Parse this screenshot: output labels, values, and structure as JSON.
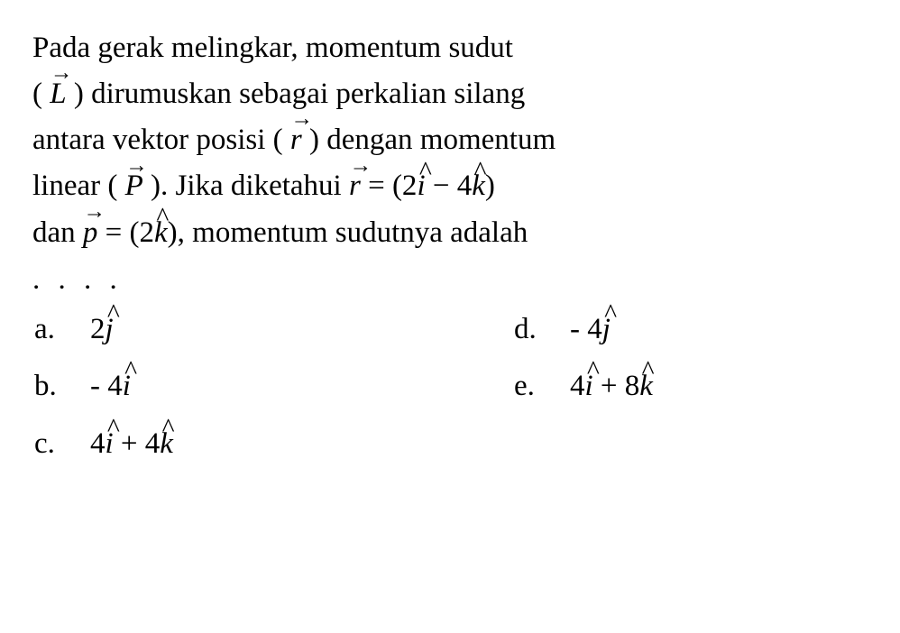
{
  "question": {
    "line1_part1": "Pada gerak melingkar, momentum sudut",
    "line2_part1": "( ",
    "line2_vec_L": "L",
    "line2_part2": " ) dirumuskan sebagai perkalian silang",
    "line3_part1": "antara vektor posisi ( ",
    "line3_vec_r": "r",
    "line3_part2": " ) dengan momentum",
    "line4_part1": "linear ( ",
    "line4_vec_P": "P",
    "line4_part2": " ). Jika diketahui ",
    "line4_vec_r2": "r",
    "line4_part3": " = (2",
    "line4_ihat": "i",
    "line4_part4": " − 4",
    "line4_khat": "k",
    "line4_part5": ")",
    "line5_part1": "dan ",
    "line5_vec_p": "p",
    "line5_part2": " = (2",
    "line5_khat": "k",
    "line5_part3": "), momentum sudutnya adalah",
    "dots": ". . . ."
  },
  "options": {
    "a": {
      "label": "a.",
      "prefix": "2",
      "unit": "j",
      "suffix": ""
    },
    "d": {
      "label": "d.",
      "prefix": "- 4",
      "unit": "j",
      "suffix": ""
    },
    "b": {
      "label": "b.",
      "prefix": "- 4",
      "unit": "i",
      "suffix": ""
    },
    "e": {
      "label": "e.",
      "prefix": "4",
      "unit1": "i",
      "mid": " + 8",
      "unit2": "k"
    },
    "c": {
      "label": "c.",
      "prefix": "4",
      "unit1": "i",
      "mid": " + 4",
      "unit2": "k"
    }
  },
  "style": {
    "font_size_pt": 25,
    "line_height": 1.55,
    "text_color": "#000000",
    "background_color": "#ffffff",
    "font_family": "Georgia, Times New Roman, serif"
  }
}
